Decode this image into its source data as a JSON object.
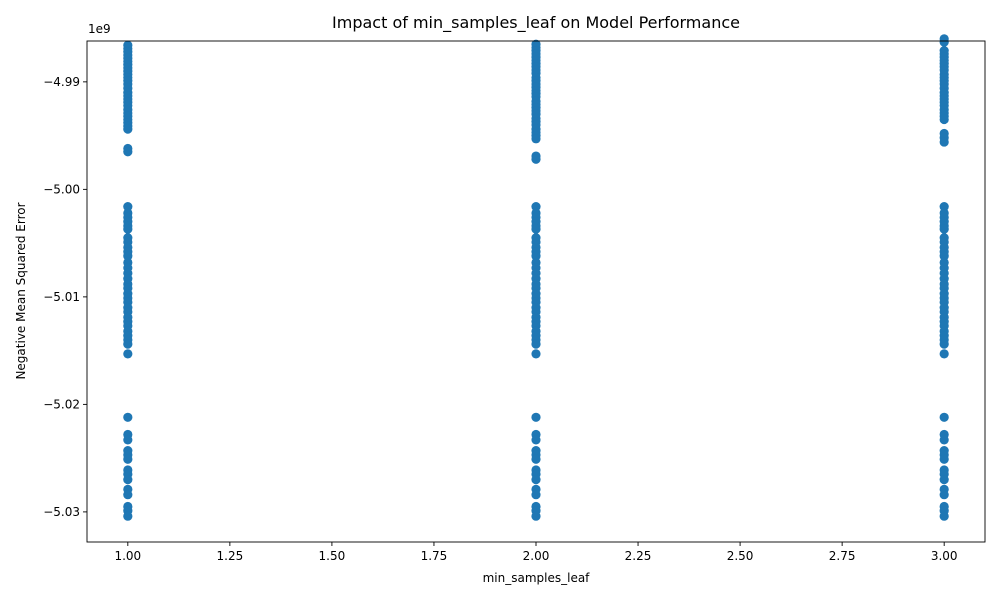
{
  "chart_data": {
    "type": "scatter",
    "title": "Impact of min_samples_leaf on Model Performance",
    "xlabel": "min_samples_leaf",
    "ylabel": "Negative Mean Squared Error",
    "y_offset_label": "1e9",
    "xlim": [
      0.9,
      3.1
    ],
    "ylim": [
      -5.0328,
      -4.9862
    ],
    "x_ticks": [
      1.0,
      1.25,
      1.5,
      1.75,
      2.0,
      2.25,
      2.5,
      2.75,
      3.0
    ],
    "x_tick_labels": [
      "1.00",
      "1.25",
      "1.50",
      "1.75",
      "2.00",
      "2.25",
      "2.50",
      "2.75",
      "3.00"
    ],
    "y_ticks": [
      -4.99,
      -5.0,
      -5.01,
      -5.02,
      -5.03
    ],
    "y_tick_labels": [
      "−4.99",
      "−5.00",
      "−5.01",
      "−5.02",
      "−5.03"
    ],
    "grid": false,
    "marker_color": "#1f77b4",
    "series": [
      {
        "x": 1,
        "y": [
          -4.9866,
          -4.9869,
          -4.9872,
          -4.9875,
          -4.9878,
          -4.9881,
          -4.9884,
          -4.9887,
          -4.989,
          -4.9893,
          -4.9896,
          -4.9899,
          -4.9902,
          -4.9906,
          -4.991,
          -4.9913,
          -4.9916,
          -4.9919,
          -4.9922,
          -4.9926,
          -4.9929,
          -4.9932,
          -4.9935,
          -4.9938,
          -4.9941,
          -4.9944,
          -4.9962,
          -4.9965,
          -5.0016,
          -5.0022,
          -5.0026,
          -5.003,
          -5.0034,
          -5.0037,
          -5.0045,
          -5.0049,
          -5.0054,
          -5.0058,
          -5.0062,
          -5.0068,
          -5.0073,
          -5.0078,
          -5.0083,
          -5.0088,
          -5.0092,
          -5.0097,
          -5.0101,
          -5.0105,
          -5.011,
          -5.0114,
          -5.0119,
          -5.0123,
          -5.0127,
          -5.0132,
          -5.0136,
          -5.014,
          -5.0144,
          -5.0153,
          -5.0212,
          -5.0228,
          -5.0233,
          -5.0243,
          -5.0247,
          -5.0251,
          -5.0261,
          -5.0265,
          -5.027,
          -5.0279,
          -5.0284,
          -5.0295,
          -5.0299,
          -5.0304
        ]
      },
      {
        "x": 2,
        "y": [
          -4.9865,
          -4.9868,
          -4.9871,
          -4.9874,
          -4.9877,
          -4.988,
          -4.9883,
          -4.9886,
          -4.9889,
          -4.9892,
          -4.9896,
          -4.9899,
          -4.9902,
          -4.9905,
          -4.9908,
          -4.9911,
          -4.9914,
          -4.9918,
          -4.9921,
          -4.9924,
          -4.9927,
          -4.993,
          -4.9934,
          -4.9937,
          -4.994,
          -4.9944,
          -4.9947,
          -4.995,
          -4.9953,
          -4.9969,
          -4.9972,
          -5.0016,
          -5.0022,
          -5.0026,
          -5.003,
          -5.0034,
          -5.0037,
          -5.0045,
          -5.0049,
          -5.0054,
          -5.0058,
          -5.0062,
          -5.0068,
          -5.0073,
          -5.0078,
          -5.0083,
          -5.0088,
          -5.0092,
          -5.0097,
          -5.0101,
          -5.0105,
          -5.011,
          -5.0114,
          -5.0119,
          -5.0123,
          -5.0127,
          -5.0132,
          -5.0136,
          -5.014,
          -5.0144,
          -5.0153,
          -5.0212,
          -5.0228,
          -5.0233,
          -5.0243,
          -5.0247,
          -5.0251,
          -5.0261,
          -5.0265,
          -5.027,
          -5.0279,
          -5.0284,
          -5.0295,
          -5.0299,
          -5.0304
        ]
      },
      {
        "x": 3,
        "y": [
          -4.986,
          -4.9863,
          -4.9871,
          -4.9874,
          -4.9877,
          -4.988,
          -4.9883,
          -4.9886,
          -4.9889,
          -4.9893,
          -4.9896,
          -4.9899,
          -4.9902,
          -4.9906,
          -4.991,
          -4.9913,
          -4.9916,
          -4.9919,
          -4.9922,
          -4.9926,
          -4.9929,
          -4.9932,
          -4.9935,
          -4.9948,
          -4.9952,
          -4.9956,
          -5.0016,
          -5.0022,
          -5.0026,
          -5.003,
          -5.0034,
          -5.0037,
          -5.0045,
          -5.0049,
          -5.0054,
          -5.0058,
          -5.0062,
          -5.0068,
          -5.0073,
          -5.0078,
          -5.0083,
          -5.0088,
          -5.0092,
          -5.0097,
          -5.0101,
          -5.0105,
          -5.011,
          -5.0114,
          -5.0119,
          -5.0123,
          -5.0127,
          -5.0132,
          -5.0136,
          -5.014,
          -5.0144,
          -5.0153,
          -5.0212,
          -5.0228,
          -5.0233,
          -5.0243,
          -5.0247,
          -5.0251,
          -5.0261,
          -5.0265,
          -5.027,
          -5.0279,
          -5.0284,
          -5.0295,
          -5.0299,
          -5.0304
        ]
      }
    ]
  }
}
